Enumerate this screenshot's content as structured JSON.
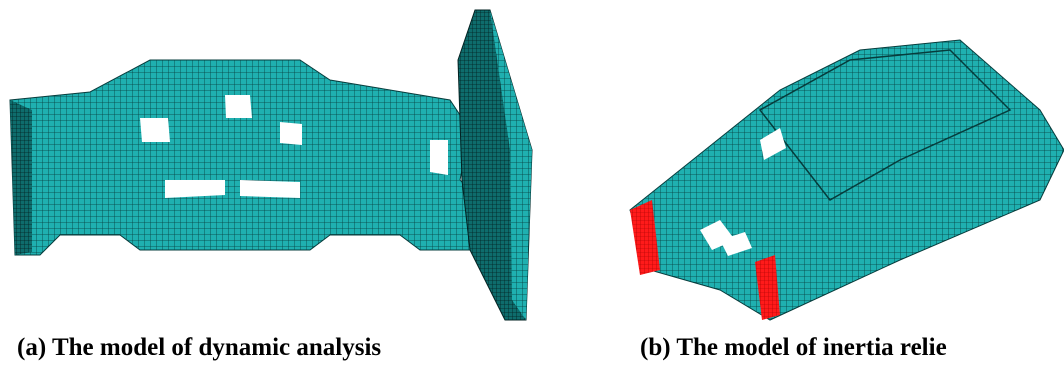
{
  "figure": {
    "panels": [
      {
        "caption": "(a) The model of dynamic analysis"
      },
      {
        "caption": "(b) The model of inertia relie"
      }
    ]
  }
}
